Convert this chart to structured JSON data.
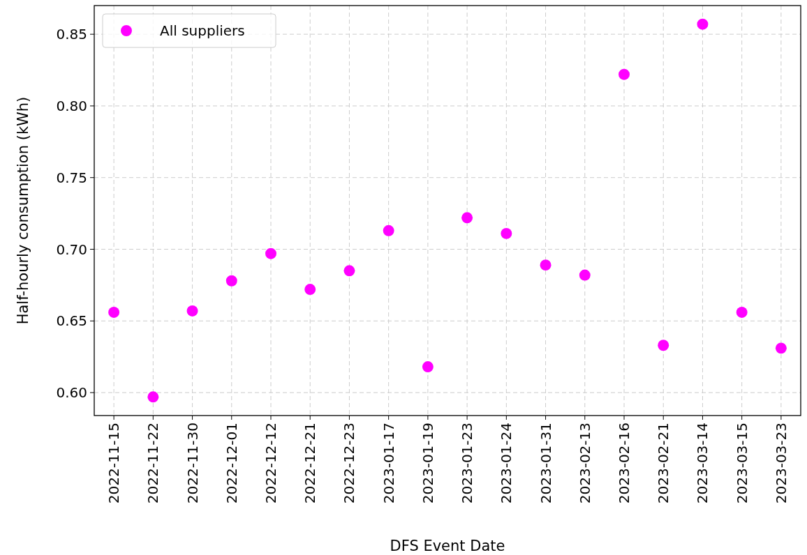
{
  "chart_data": {
    "type": "scatter",
    "xlabel": "DFS Event Date",
    "ylabel": "Half-hourly consumption (kWh)",
    "categories": [
      "2022-11-15",
      "2022-11-22",
      "2022-11-30",
      "2022-12-01",
      "2022-12-12",
      "2022-12-21",
      "2022-12-23",
      "2023-01-17",
      "2023-01-19",
      "2023-01-23",
      "2023-01-24",
      "2023-01-31",
      "2023-02-13",
      "2023-02-16",
      "2023-02-21",
      "2023-03-14",
      "2023-03-15",
      "2023-03-23"
    ],
    "series": [
      {
        "name": "All suppliers",
        "color": "#ff00ff",
        "values": [
          0.656,
          0.597,
          0.657,
          0.678,
          0.697,
          0.672,
          0.685,
          0.713,
          0.618,
          0.722,
          0.711,
          0.689,
          0.682,
          0.822,
          0.633,
          0.857,
          0.656,
          0.631
        ]
      }
    ],
    "ylim": [
      0.584,
      0.87
    ],
    "yticks": [
      {
        "value": 0.6,
        "label": "0.60"
      },
      {
        "value": 0.65,
        "label": "0.65"
      },
      {
        "value": 0.7,
        "label": "0.70"
      },
      {
        "value": 0.75,
        "label": "0.75"
      },
      {
        "value": 0.8,
        "label": "0.80"
      },
      {
        "value": 0.85,
        "label": "0.85"
      }
    ],
    "grid": true,
    "legend": "top left",
    "marker": "circle"
  }
}
